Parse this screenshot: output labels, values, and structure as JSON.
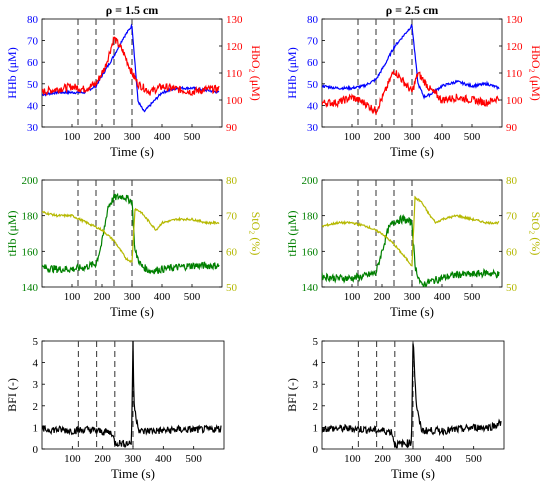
{
  "chart_data": [
    {
      "type": "line",
      "title": "ρ = 1.5 cm",
      "xlabel": "Time (s)",
      "xlim": [
        0,
        600
      ],
      "xticks": [
        100,
        200,
        300,
        400,
        500
      ],
      "ylabel_left": "HHb (μM)",
      "ylim_left": [
        30,
        80
      ],
      "yticks_left": [
        30,
        40,
        50,
        60,
        70,
        80
      ],
      "ylabel_right": "HbO₂ (μM)",
      "ylim_right": [
        90,
        130
      ],
      "yticks_right": [
        90,
        100,
        110,
        120,
        130
      ],
      "vlines": [
        120,
        180,
        240,
        300
      ],
      "series": [
        {
          "name": "HHb",
          "axis": "left",
          "color": "#0000ff",
          "x": [
            0,
            50,
            100,
            140,
            180,
            210,
            240,
            270,
            300,
            320,
            340,
            360,
            400,
            450,
            500,
            550,
            590
          ],
          "y": [
            45,
            46,
            46,
            46,
            49,
            56,
            63,
            71,
            77,
            42,
            37,
            40,
            46,
            48,
            48,
            47,
            46
          ]
        },
        {
          "name": "HbO₂",
          "axis": "right",
          "color": "#ff0000",
          "x": [
            0,
            50,
            100,
            140,
            180,
            210,
            240,
            270,
            300,
            320,
            360,
            400,
            450,
            500,
            550,
            590
          ],
          "y": [
            103,
            104,
            105,
            104,
            106,
            112,
            123,
            118,
            110,
            106,
            103,
            105,
            104,
            103,
            104,
            104
          ]
        }
      ]
    },
    {
      "type": "line",
      "title": "ρ = 2.5 cm",
      "xlabel": "Time (s)",
      "xlim": [
        0,
        600
      ],
      "xticks": [
        100,
        200,
        300,
        400,
        500
      ],
      "ylabel_left": "HHb (μM)",
      "ylim_left": [
        30,
        80
      ],
      "yticks_left": [
        30,
        40,
        50,
        60,
        70,
        80
      ],
      "ylabel_right": "HbO₂ (μM)",
      "ylim_right": [
        90,
        130
      ],
      "yticks_right": [
        90,
        100,
        110,
        120,
        130
      ],
      "vlines": [
        120,
        180,
        240,
        300
      ],
      "series": [
        {
          "name": "HHb",
          "axis": "left",
          "color": "#0000ff",
          "x": [
            0,
            50,
            100,
            140,
            180,
            210,
            240,
            270,
            300,
            320,
            340,
            360,
            400,
            450,
            500,
            550,
            590
          ],
          "y": [
            49,
            48,
            48,
            49,
            52,
            59,
            67,
            72,
            77,
            50,
            44,
            45,
            49,
            51,
            49,
            50,
            48
          ]
        },
        {
          "name": "HbO₂",
          "axis": "right",
          "color": "#ff0000",
          "x": [
            0,
            50,
            100,
            140,
            180,
            210,
            240,
            270,
            300,
            320,
            360,
            400,
            450,
            500,
            550,
            590
          ],
          "y": [
            99,
            99,
            101,
            99,
            96,
            103,
            111,
            107,
            103,
            110,
            104,
            100,
            101,
            100,
            99,
            101
          ]
        }
      ]
    },
    {
      "type": "line",
      "xlabel": "Time (s)",
      "xlim": [
        0,
        600
      ],
      "xticks": [
        100,
        200,
        300,
        400,
        500
      ],
      "ylabel_left": "tHb (μM)",
      "ylim_left": [
        140,
        200
      ],
      "yticks_left": [
        140,
        160,
        180,
        200
      ],
      "ylabel_right": "StO₂ (%)",
      "ylim_right": [
        50,
        80
      ],
      "yticks_right": [
        50,
        60,
        70,
        80
      ],
      "vlines": [
        120,
        180,
        240,
        300
      ],
      "series": [
        {
          "name": "tHb",
          "axis": "left",
          "color": "#008000",
          "x": [
            0,
            50,
            100,
            140,
            180,
            200,
            220,
            240,
            270,
            300,
            310,
            330,
            360,
            400,
            450,
            500,
            550,
            590
          ],
          "y": [
            151,
            150,
            150,
            151,
            153,
            165,
            185,
            190,
            191,
            188,
            160,
            152,
            149,
            150,
            151,
            152,
            152,
            152
          ]
        },
        {
          "name": "StO₂",
          "axis": "right",
          "color": "#b5b800",
          "x": [
            0,
            50,
            100,
            150,
            200,
            240,
            280,
            300,
            310,
            330,
            360,
            380,
            400,
            450,
            500,
            550,
            590
          ],
          "y": [
            71,
            70,
            70,
            68,
            66,
            63,
            58,
            57,
            72,
            71,
            68,
            66,
            68,
            69,
            69,
            68,
            68
          ]
        }
      ]
    },
    {
      "type": "line",
      "xlabel": "Time (s)",
      "xlim": [
        0,
        600
      ],
      "xticks": [
        100,
        200,
        300,
        400,
        500
      ],
      "ylabel_left": "tHb (μM)",
      "ylim_left": [
        140,
        200
      ],
      "yticks_left": [
        140,
        160,
        180,
        200
      ],
      "ylabel_right": "StO₂ (%)",
      "ylim_right": [
        50,
        80
      ],
      "yticks_right": [
        50,
        60,
        70,
        80
      ],
      "vlines": [
        120,
        180,
        240,
        300
      ],
      "series": [
        {
          "name": "tHb",
          "axis": "left",
          "color": "#008000",
          "x": [
            0,
            50,
            100,
            140,
            180,
            200,
            220,
            240,
            270,
            300,
            310,
            330,
            360,
            400,
            450,
            500,
            550,
            590
          ],
          "y": [
            146,
            145,
            145,
            146,
            148,
            160,
            172,
            177,
            178,
            176,
            152,
            141,
            143,
            145,
            147,
            147,
            148,
            147
          ]
        },
        {
          "name": "StO₂",
          "axis": "right",
          "color": "#b5b800",
          "x": [
            0,
            50,
            100,
            150,
            200,
            240,
            280,
            300,
            310,
            330,
            360,
            380,
            400,
            450,
            500,
            550,
            590
          ],
          "y": [
            67,
            68,
            68,
            67,
            65,
            62,
            58,
            56,
            75,
            74,
            70,
            68,
            69,
            70,
            69,
            68,
            68
          ]
        }
      ]
    },
    {
      "type": "line",
      "xlabel": "Time (s)",
      "xlim": [
        0,
        600
      ],
      "xticks": [
        100,
        200,
        300,
        400,
        500
      ],
      "ylabel_left": "BFI (-)",
      "ylim_left": [
        0,
        5
      ],
      "yticks_left": [
        0,
        1,
        2,
        3,
        4,
        5
      ],
      "vlines": [
        120,
        180,
        240,
        300
      ],
      "series": [
        {
          "name": "BFI",
          "axis": "left",
          "color": "#000000",
          "x": [
            0,
            50,
            100,
            150,
            200,
            230,
            240,
            270,
            295,
            300,
            303,
            306,
            310,
            320,
            330,
            350,
            400,
            450,
            500,
            550,
            590
          ],
          "y": [
            0.9,
            0.9,
            0.85,
            0.9,
            0.8,
            0.75,
            0.3,
            0.25,
            0.3,
            4.9,
            2.3,
            1.8,
            1.5,
            0.9,
            0.8,
            0.85,
            0.85,
            0.9,
            0.9,
            0.9,
            0.95
          ]
        }
      ]
    },
    {
      "type": "line",
      "xlabel": "Time (s)",
      "xlim": [
        0,
        600
      ],
      "xticks": [
        100,
        200,
        300,
        400,
        500
      ],
      "ylabel_left": "BFI (-)",
      "ylim_left": [
        0,
        5
      ],
      "yticks_left": [
        0,
        1,
        2,
        3,
        4,
        5
      ],
      "vlines": [
        120,
        180,
        240,
        300
      ],
      "series": [
        {
          "name": "BFI",
          "axis": "left",
          "color": "#000000",
          "x": [
            0,
            50,
            100,
            150,
            200,
            230,
            240,
            270,
            295,
            300,
            303,
            307,
            312,
            320,
            330,
            350,
            400,
            450,
            500,
            550,
            590
          ],
          "y": [
            0.95,
            0.95,
            0.95,
            0.9,
            0.85,
            0.8,
            0.2,
            0.25,
            0.3,
            5.0,
            4.5,
            3.0,
            2.0,
            1.3,
            0.85,
            0.85,
            0.85,
            0.9,
            1.0,
            1.0,
            1.2
          ]
        }
      ]
    }
  ]
}
